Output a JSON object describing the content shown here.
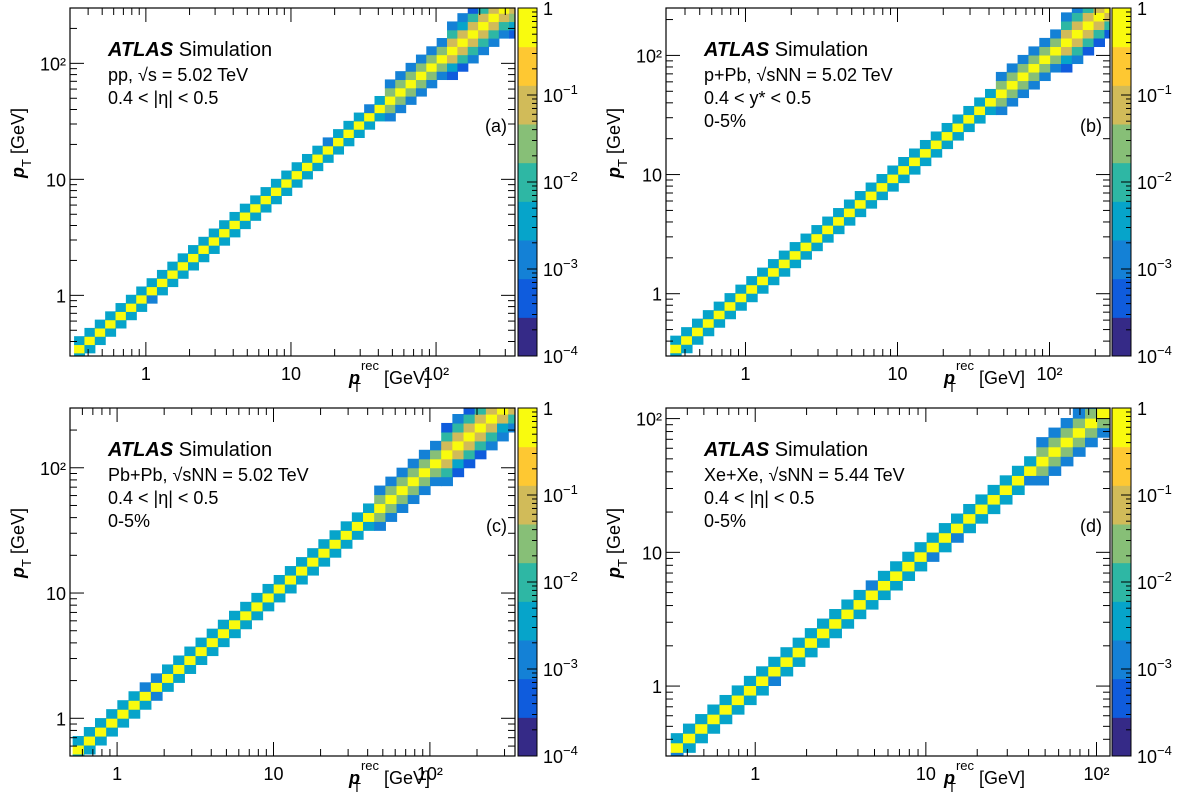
{
  "figure": {
    "colorscale": [
      "#352a87",
      "#0f5cdd",
      "#1481d6",
      "#06a4ca",
      "#2eb7a4",
      "#87bf77",
      "#d1bb59",
      "#fec832",
      "#f9fb0e"
    ],
    "colorbar_ticks": [
      {
        "base": "1",
        "exp": ""
      },
      {
        "base": "10",
        "exp": "−1"
      },
      {
        "base": "10",
        "exp": "−2"
      },
      {
        "base": "10",
        "exp": "−3"
      },
      {
        "base": "10",
        "exp": "−4"
      }
    ]
  },
  "chart_data": [
    {
      "type": "heatmap",
      "panel": "(a)",
      "log_x": true,
      "log_y": true,
      "xlim": [
        0.3,
        350
      ],
      "ylim": [
        0.3,
        300
      ],
      "zlim": [
        0.0001,
        1
      ],
      "x_ticks": [
        "1",
        "10",
        "10²"
      ],
      "y_ticks": [
        "1",
        "10",
        "10²"
      ],
      "xlabel": {
        "main": "p",
        "sub": "T",
        "sup": "rec",
        "unit": " [GeV]"
      },
      "ylabel": {
        "main": "p",
        "sub": "T",
        "unit": " [GeV]"
      },
      "experiment": "ATLAS",
      "label": "Simulation",
      "lines": [
        "pp, √s = 5.02 TeV",
        "0.4 < |η| < 0.5"
      ],
      "band_start": 0.32
    },
    {
      "type": "heatmap",
      "panel": "(b)",
      "log_x": true,
      "log_y": true,
      "xlim": [
        0.3,
        250
      ],
      "ylim": [
        0.3,
        250
      ],
      "zlim": [
        0.0001,
        1
      ],
      "x_ticks": [
        "1",
        "10",
        "10²"
      ],
      "y_ticks": [
        "1",
        "10",
        "10²"
      ],
      "xlabel": {
        "main": "p",
        "sub": "T",
        "sup": "rec",
        "unit": " [GeV]"
      },
      "ylabel": {
        "main": "p",
        "sub": "T",
        "unit": " [GeV]"
      },
      "experiment": "ATLAS",
      "label": "Simulation",
      "lines": [
        "p+Pb, √sNN = 5.02 TeV",
        "0.4 < y* < 0.5",
        "0-5%"
      ],
      "band_start": 0.32
    },
    {
      "type": "heatmap",
      "panel": "(c)",
      "log_x": true,
      "log_y": true,
      "xlim": [
        0.5,
        350
      ],
      "ylim": [
        0.5,
        300
      ],
      "zlim": [
        0.0001,
        1
      ],
      "x_ticks": [
        "1",
        "10",
        "10²"
      ],
      "y_ticks": [
        "1",
        "10",
        "10²"
      ],
      "xlabel": {
        "main": "p",
        "sub": "T",
        "sup": "rec",
        "unit": " [GeV]"
      },
      "ylabel": {
        "main": "p",
        "sub": "T",
        "unit": " [GeV]"
      },
      "experiment": "ATLAS",
      "label": "Simulation",
      "lines": [
        "Pb+Pb, √sNN = 5.02 TeV",
        "0.4 < |η| < 0.5",
        "0-5%"
      ],
      "band_start": 0.52
    },
    {
      "type": "heatmap",
      "panel": "(d)",
      "log_x": true,
      "log_y": true,
      "xlim": [
        0.3,
        120
      ],
      "ylim": [
        0.3,
        120
      ],
      "zlim": [
        0.0001,
        1
      ],
      "x_ticks": [
        "1",
        "10",
        "10²"
      ],
      "y_ticks": [
        "1",
        "10",
        "10²"
      ],
      "xlabel": {
        "main": "p",
        "sub": "T",
        "sup": "rec",
        "unit": " [GeV]"
      },
      "ylabel": {
        "main": "p",
        "sub": "T",
        "unit": " [GeV]"
      },
      "experiment": "ATLAS",
      "label": "Simulation",
      "lines": [
        "Xe+Xe, √sNN = 5.44 TeV",
        "0.4 < |η| < 0.5",
        "0-5%"
      ],
      "band_start": 0.32
    }
  ]
}
